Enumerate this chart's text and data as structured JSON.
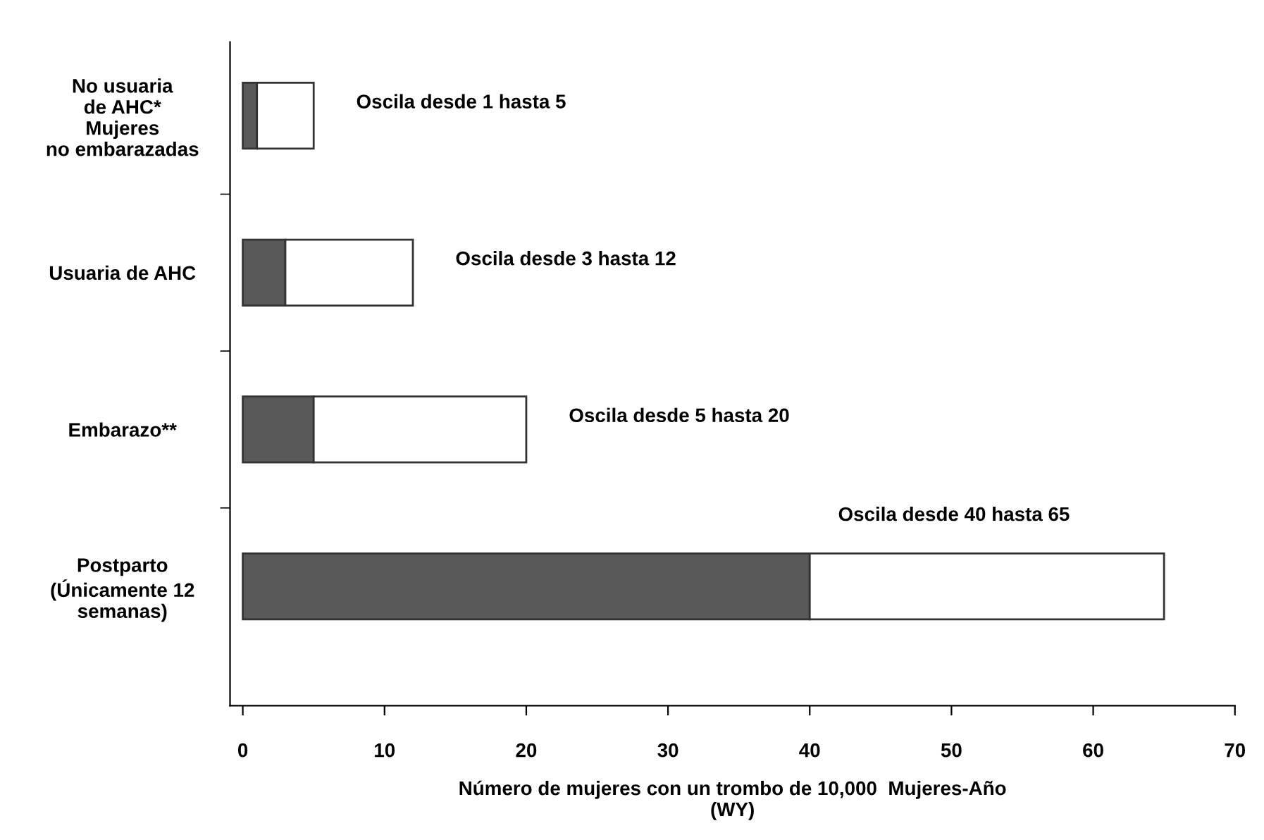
{
  "chart_data": {
    "type": "bar",
    "orientation": "horizontal",
    "stacked": true,
    "categories": [
      "No usuaria\nde AHC*\nMujeres\nno embarazadas",
      "Usuaria de AHC",
      "Embarazo**",
      "Postparto\n(Únicamente 12\nsemanas)"
    ],
    "series": [
      {
        "color": "#595959",
        "values": [
          1,
          3,
          5,
          40
        ]
      },
      {
        "color": "#ffffff",
        "values": [
          4,
          9,
          15,
          25
        ]
      }
    ],
    "xlim": [
      -0.9,
      70
    ],
    "xticks": [
      0,
      10,
      20,
      30,
      40,
      50,
      60,
      70
    ],
    "xlabel": "Número de mujeres con un trombo de 10,000  Mujeres-Año\n(WY)",
    "annotations": [
      "Oscila desde 1 hasta 5",
      "Oscila desde 3 hasta 12",
      "Oscila desde 5 hasta 20",
      "Oscila desde 40 hasta 65"
    ],
    "grid": false,
    "legend": false
  }
}
